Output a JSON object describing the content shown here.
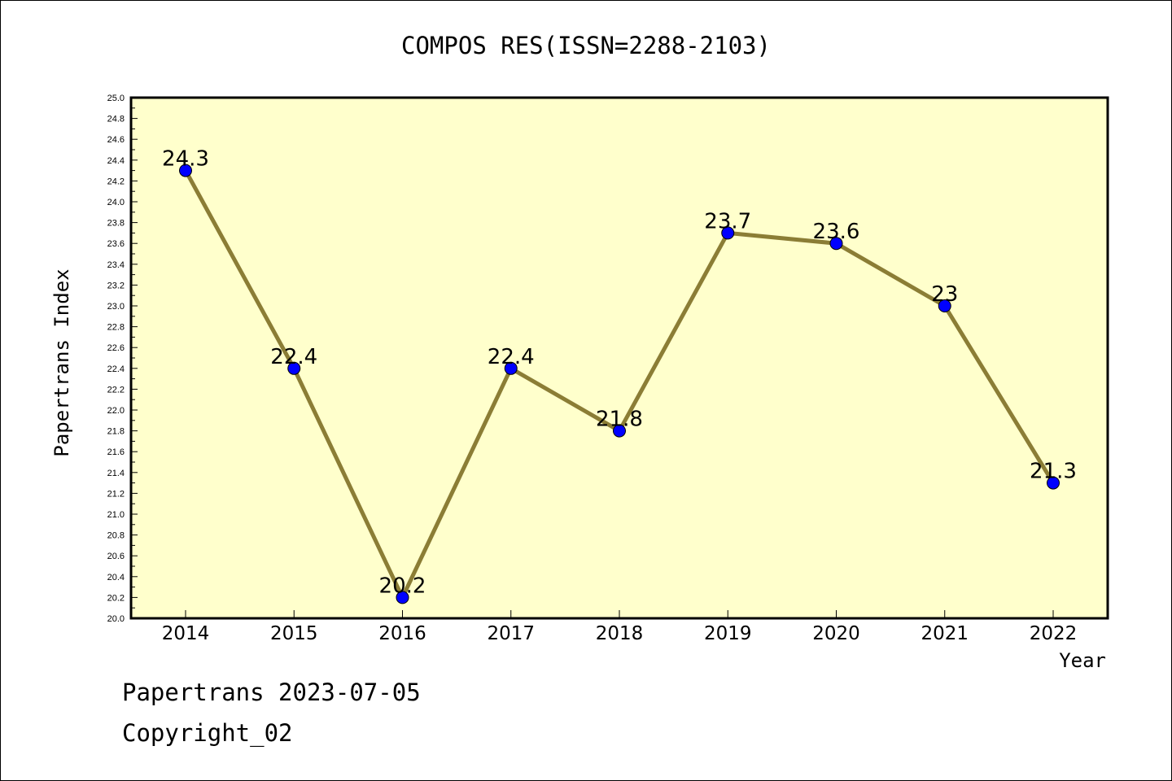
{
  "chart_data": {
    "type": "line",
    "title": "COMPOS RES(ISSN=2288-2103)",
    "xlabel": "Year",
    "ylabel": "Papertrans Index",
    "categories": [
      "2014",
      "2015",
      "2016",
      "2017",
      "2018",
      "2019",
      "2020",
      "2021",
      "2022"
    ],
    "values": [
      24.3,
      22.4,
      20.2,
      22.4,
      21.8,
      23.7,
      23.6,
      23,
      21.3
    ],
    "data_labels": [
      "24.3",
      "22.4",
      "20.2",
      "22.4",
      "21.8",
      "23.7",
      "23.6",
      "23",
      "21.3"
    ],
    "ylim": [
      20.0,
      25.0
    ],
    "ytick_step": 0.2,
    "grid": false,
    "colors": {
      "plot_background": "#ffffcc",
      "line": "#8b7d35",
      "marker": "#0000ff"
    }
  },
  "footer": {
    "line1": "Papertrans 2023-07-05",
    "line2": "Copyright_02"
  }
}
